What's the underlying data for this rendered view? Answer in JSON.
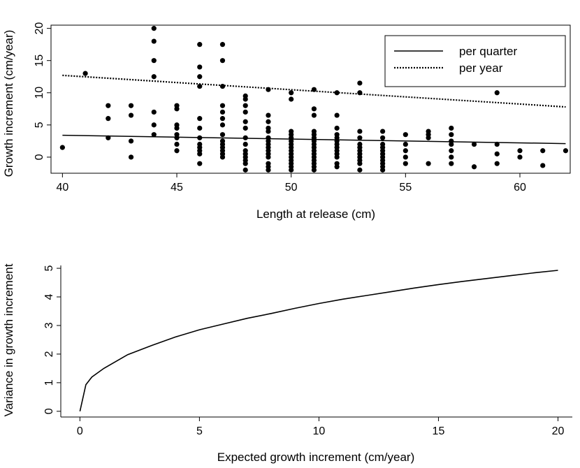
{
  "chart_data": [
    {
      "type": "scatter",
      "xlabel": "Length at release (cm)",
      "ylabel": "Growth increment (cm/year)",
      "xlim": [
        39.5,
        62.2
      ],
      "ylim": [
        -2.5,
        20.5
      ],
      "xticks": [
        "40",
        "45",
        "50",
        "55",
        "60"
      ],
      "xtick_values": [
        40,
        45,
        50,
        55,
        60
      ],
      "yticks": [
        "0",
        "5",
        "10",
        "15",
        "20"
      ],
      "ytick_values": [
        0,
        5,
        10,
        15,
        20
      ],
      "legend": {
        "position": "top-right",
        "entries": [
          {
            "label": "per quarter",
            "line_style": "solid"
          },
          {
            "label": "per year",
            "line_style": "dotted"
          }
        ]
      },
      "lines": [
        {
          "name": "per quarter",
          "style": "solid",
          "x": [
            40,
            62
          ],
          "y": [
            3.4,
            2.1
          ]
        },
        {
          "name": "per year",
          "style": "dotted",
          "x": [
            40,
            62
          ],
          "y": [
            12.7,
            7.8
          ]
        }
      ],
      "points": [
        [
          40,
          1.5
        ],
        [
          41,
          13
        ],
        [
          42,
          8
        ],
        [
          42,
          6
        ],
        [
          42,
          3
        ],
        [
          43,
          8
        ],
        [
          43,
          6.5
        ],
        [
          43,
          2.5
        ],
        [
          43,
          0
        ],
        [
          44,
          20
        ],
        [
          44,
          18
        ],
        [
          44,
          15
        ],
        [
          44,
          12.5
        ],
        [
          44,
          7
        ],
        [
          44,
          5
        ],
        [
          44,
          3.5
        ],
        [
          45,
          8
        ],
        [
          45,
          7.5
        ],
        [
          45,
          5
        ],
        [
          45,
          4.5
        ],
        [
          45,
          3.5
        ],
        [
          45,
          3
        ],
        [
          45,
          2
        ],
        [
          45,
          1
        ],
        [
          46,
          17.5
        ],
        [
          46,
          14
        ],
        [
          46,
          12.5
        ],
        [
          46,
          11
        ],
        [
          46,
          6
        ],
        [
          46,
          4.5
        ],
        [
          46,
          3
        ],
        [
          46,
          2
        ],
        [
          46,
          1.5
        ],
        [
          46,
          1
        ],
        [
          46,
          0.5
        ],
        [
          46,
          -1
        ],
        [
          47,
          17.5
        ],
        [
          47,
          15
        ],
        [
          47,
          11
        ],
        [
          47,
          8
        ],
        [
          47,
          7
        ],
        [
          47,
          6
        ],
        [
          47,
          5
        ],
        [
          47,
          3.5
        ],
        [
          47,
          2.5
        ],
        [
          47,
          2
        ],
        [
          47,
          1.5
        ],
        [
          47,
          1
        ],
        [
          47,
          0.5
        ],
        [
          47,
          0
        ],
        [
          48,
          9.5
        ],
        [
          48,
          9
        ],
        [
          48,
          8
        ],
        [
          48,
          7
        ],
        [
          48,
          5.5
        ],
        [
          48,
          4.5
        ],
        [
          48,
          3
        ],
        [
          48,
          2
        ],
        [
          48,
          1
        ],
        [
          48,
          0.5
        ],
        [
          48,
          0
        ],
        [
          48,
          -0.5
        ],
        [
          48,
          -1
        ],
        [
          48,
          -2
        ],
        [
          49,
          10.5
        ],
        [
          49,
          6.5
        ],
        [
          49,
          5.5
        ],
        [
          49,
          4.5
        ],
        [
          49,
          4
        ],
        [
          49,
          3
        ],
        [
          49,
          2.5
        ],
        [
          49,
          2
        ],
        [
          49,
          1.5
        ],
        [
          49,
          1
        ],
        [
          49,
          0.5
        ],
        [
          49,
          0
        ],
        [
          49,
          -1
        ],
        [
          49,
          -1.5
        ],
        [
          49,
          -2
        ],
        [
          50,
          10
        ],
        [
          50,
          9
        ],
        [
          50,
          4
        ],
        [
          50,
          3.5
        ],
        [
          50,
          3
        ],
        [
          50,
          2.5
        ],
        [
          50,
          2
        ],
        [
          50,
          1.5
        ],
        [
          50,
          1
        ],
        [
          50,
          0.5
        ],
        [
          50,
          0
        ],
        [
          50,
          -0.5
        ],
        [
          50,
          -1
        ],
        [
          50,
          -1.5
        ],
        [
          50,
          -2
        ],
        [
          51,
          10.5
        ],
        [
          51,
          7.5
        ],
        [
          51,
          6.5
        ],
        [
          51,
          4
        ],
        [
          51,
          3.5
        ],
        [
          51,
          3
        ],
        [
          51,
          2.5
        ],
        [
          51,
          2
        ],
        [
          51,
          1.5
        ],
        [
          51,
          1
        ],
        [
          51,
          0.5
        ],
        [
          51,
          0
        ],
        [
          51,
          -0.5
        ],
        [
          51,
          -1
        ],
        [
          51,
          -1.5
        ],
        [
          51,
          -2
        ],
        [
          52,
          10
        ],
        [
          52,
          6.5
        ],
        [
          52,
          4.5
        ],
        [
          52,
          3.5
        ],
        [
          52,
          3
        ],
        [
          52,
          2.5
        ],
        [
          52,
          2
        ],
        [
          52,
          1.5
        ],
        [
          52,
          1
        ],
        [
          52,
          0.5
        ],
        [
          52,
          0
        ],
        [
          52,
          -1
        ],
        [
          52,
          -1.5
        ],
        [
          53,
          11.5
        ],
        [
          53,
          10
        ],
        [
          53,
          4
        ],
        [
          53,
          3
        ],
        [
          53,
          2
        ],
        [
          53,
          1.5
        ],
        [
          53,
          1
        ],
        [
          53,
          0.5
        ],
        [
          53,
          0
        ],
        [
          53,
          -0.5
        ],
        [
          53,
          -1
        ],
        [
          53,
          -2
        ],
        [
          54,
          4
        ],
        [
          54,
          3
        ],
        [
          54,
          2
        ],
        [
          54,
          1.5
        ],
        [
          54,
          1
        ],
        [
          54,
          0.5
        ],
        [
          54,
          0
        ],
        [
          54,
          -0.5
        ],
        [
          54,
          -1
        ],
        [
          54,
          -1.5
        ],
        [
          54,
          -2
        ],
        [
          55,
          3.5
        ],
        [
          55,
          2
        ],
        [
          55,
          1
        ],
        [
          55,
          0
        ],
        [
          55,
          -1
        ],
        [
          56,
          4
        ],
        [
          56,
          3.5
        ],
        [
          56,
          3
        ],
        [
          56,
          -1
        ],
        [
          57,
          4.5
        ],
        [
          57,
          3.5
        ],
        [
          57,
          2.5
        ],
        [
          57,
          2
        ],
        [
          57,
          1
        ],
        [
          57,
          0
        ],
        [
          57,
          -1
        ],
        [
          58,
          2
        ],
        [
          58,
          -1.5
        ],
        [
          59,
          10
        ],
        [
          59,
          2
        ],
        [
          59,
          0.5
        ],
        [
          59,
          -1
        ],
        [
          60,
          1
        ],
        [
          60,
          0
        ],
        [
          61,
          1
        ],
        [
          61,
          -1.3
        ],
        [
          62,
          1
        ]
      ]
    },
    {
      "type": "line",
      "xlabel": "Expected growth increment (cm/year)",
      "ylabel": "Variance in growth increment",
      "xlim": [
        -0.8,
        20.6
      ],
      "ylim": [
        -0.2,
        5.1
      ],
      "xticks": [
        "0",
        "5",
        "10",
        "15",
        "20"
      ],
      "xtick_values": [
        0,
        5,
        10,
        15,
        20
      ],
      "yticks": [
        "0",
        "1",
        "2",
        "3",
        "4",
        "5"
      ],
      "ytick_values": [
        0,
        1,
        2,
        3,
        4,
        5
      ],
      "series": [
        {
          "style": "solid",
          "x": [
            0,
            0.25,
            0.5,
            1,
            2,
            3,
            4,
            5,
            6,
            7,
            8,
            9,
            10,
            11,
            12,
            13,
            14,
            15,
            16,
            17,
            18,
            19,
            20
          ],
          "y": [
            0,
            0.93,
            1.2,
            1.5,
            1.98,
            2.3,
            2.6,
            2.85,
            3.05,
            3.25,
            3.42,
            3.6,
            3.77,
            3.92,
            4.05,
            4.18,
            4.31,
            4.43,
            4.54,
            4.64,
            4.74,
            4.84,
            4.93
          ]
        }
      ]
    }
  ]
}
